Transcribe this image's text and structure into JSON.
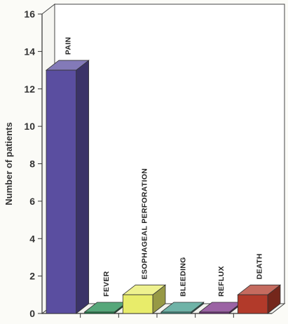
{
  "chart_data": {
    "type": "bar",
    "style": "3d",
    "categories": [
      "PAIN",
      "FEVER",
      "ESOPHAGEAL PERFORATION",
      "BLEEDING",
      "REFLUX",
      "DEATH"
    ],
    "values": [
      13,
      0,
      1,
      0,
      0,
      1
    ],
    "ylabel": "Number of patients",
    "xlabel": "",
    "ylim": [
      0,
      16
    ],
    "yticks": [
      "0",
      "2",
      "4",
      "6",
      "8",
      "10",
      "12",
      "14",
      "16"
    ],
    "grid": false,
    "legend": "none",
    "colors": [
      "#5a4ea0",
      "#1d8a4e",
      "#e8ec6a",
      "#3f9a8a",
      "#7a2f86",
      "#b23a2a"
    ]
  }
}
